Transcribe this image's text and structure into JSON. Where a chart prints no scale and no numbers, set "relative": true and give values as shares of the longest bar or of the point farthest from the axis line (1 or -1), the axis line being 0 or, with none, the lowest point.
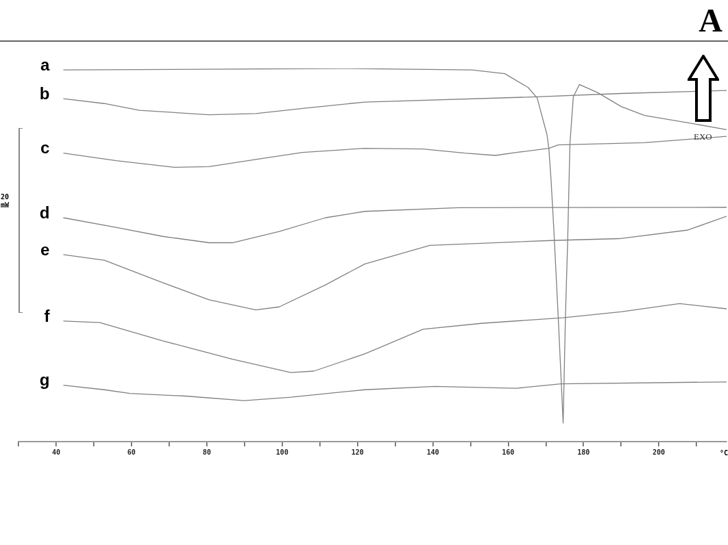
{
  "chart_data": {
    "type": "line",
    "title": "A",
    "xlabel": "°C",
    "relative": true,
    "xlim": [
      30,
      218
    ],
    "xticks": [
      {
        "value": 30,
        "label": null
      },
      40,
      {
        "value": 50,
        "label": null
      },
      60,
      {
        "value": 70,
        "label": null
      },
      80,
      {
        "value": 90,
        "label": null
      },
      100,
      {
        "value": 110,
        "label": null
      },
      120,
      {
        "value": 130,
        "label": null
      },
      140,
      {
        "value": 150,
        "label": null
      },
      160,
      {
        "value": 170,
        "label": null
      },
      180,
      {
        "value": 190,
        "label": null
      },
      200,
      {
        "value": 210,
        "label": null
      }
    ],
    "marker": "none",
    "line_style": "solid",
    "annotations": [
      "20 mW",
      "EXO"
    ],
    "series": [
      {
        "name": "a",
        "color": "#808080",
        "x": [
          41.9,
          80,
          116,
          150.4,
          159.1,
          165.3,
          167.7,
          170.3,
          170.8,
          171.4,
          172.1,
          173.3,
          174.6,
          175.2,
          175.8,
          176.4,
          177.3,
          178.9,
          183.8,
          190,
          196.2,
          208.6,
          218
        ],
        "values": [
          0.996,
          0.998,
          1.0,
          0.996,
          0.986,
          0.949,
          0.921,
          0.823,
          0.786,
          0.699,
          0.573,
          0.332,
          0.05,
          0.332,
          0.539,
          0.799,
          0.924,
          0.957,
          0.935,
          0.898,
          0.874,
          0.853,
          0.836
        ]
      },
      {
        "name": "b",
        "color": "#808080",
        "x": [
          41.9,
          52.8,
          62.1,
          80.6,
          93.0,
          105.4,
          121.9,
          167.7,
          190,
          218
        ],
        "values": [
          0.919,
          0.906,
          0.888,
          0.876,
          0.879,
          0.893,
          0.91,
          0.924,
          0.933,
          0.941
        ]
      },
      {
        "name": "c",
        "color": "#808080",
        "x": [
          41.9,
          55.9,
          71.4,
          80.6,
          93.0,
          105.4,
          121.9,
          137.4,
          148.5,
          156.6,
          162.2,
          170.8,
          173.3,
          196.2,
          218
        ],
        "values": [
          0.773,
          0.753,
          0.735,
          0.737,
          0.756,
          0.775,
          0.786,
          0.784,
          0.773,
          0.767,
          0.775,
          0.786,
          0.795,
          0.801,
          0.818
        ]
      },
      {
        "name": "d",
        "color": "#808080",
        "x": [
          41.9,
          55.9,
          68.3,
          80.6,
          86.8,
          99.2,
          111.5,
          121.9,
          146.7,
          218
        ],
        "values": [
          0.6,
          0.574,
          0.55,
          0.533,
          0.533,
          0.563,
          0.6,
          0.617,
          0.627,
          0.628
        ]
      },
      {
        "name": "e",
        "color": "#808080",
        "x": [
          41.9,
          52.8,
          68.3,
          80.6,
          93.0,
          99.2,
          111.5,
          121.9,
          139.2,
          171.5,
          189.5,
          207.7,
          218
        ],
        "values": [
          0.501,
          0.486,
          0.426,
          0.38,
          0.353,
          0.361,
          0.42,
          0.476,
          0.526,
          0.539,
          0.544,
          0.567,
          0.604
        ]
      },
      {
        "name": "f",
        "color": "#808080",
        "x": [
          41.9,
          51.6,
          68.3,
          86.8,
          102.3,
          108.4,
          121.9,
          137.4,
          152.9,
          174.5,
          190.0,
          205.5,
          218
        ],
        "values": [
          0.323,
          0.319,
          0.27,
          0.221,
          0.185,
          0.189,
          0.235,
          0.301,
          0.317,
          0.332,
          0.348,
          0.37,
          0.356
        ]
      },
      {
        "name": "g",
        "color": "#808080",
        "x": [
          41.9,
          52.8,
          59.6,
          74.4,
          89.9,
          102.3,
          121.9,
          140.5,
          162.2,
          174.0,
          218
        ],
        "values": [
          0.151,
          0.139,
          0.129,
          0.122,
          0.11,
          0.119,
          0.139,
          0.148,
          0.143,
          0.155,
          0.16
        ]
      }
    ]
  }
}
